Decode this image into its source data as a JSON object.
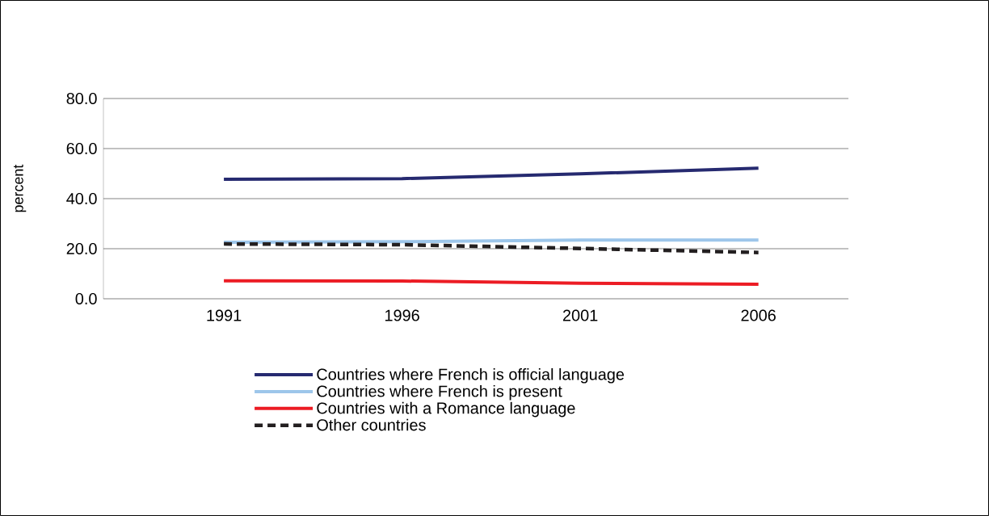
{
  "chart_data": {
    "type": "line",
    "ylabel": "percent",
    "categories": [
      "1991",
      "1996",
      "2001",
      "2006"
    ],
    "series": [
      {
        "name": "Countries where French is official language",
        "color": "#262a70",
        "values": [
          47.7,
          48.0,
          49.9,
          52.2
        ]
      },
      {
        "name": "Countries where French is present",
        "color": "#9dc6ea",
        "values": [
          22.6,
          22.8,
          23.5,
          23.5
        ]
      },
      {
        "name": "Countries with a Romance language",
        "color": "#ec1c24",
        "values": [
          7.2,
          7.1,
          6.2,
          5.8
        ]
      },
      {
        "name": "Other countries",
        "color": "#231f20",
        "values": [
          21.9,
          21.6,
          20.1,
          18.5
        ],
        "line_style": "dashed"
      }
    ],
    "ylim": [
      0,
      80
    ],
    "yticks": [
      {
        "value": 0,
        "label": "0.0"
      },
      {
        "value": 20,
        "label": "20.0"
      },
      {
        "value": 40,
        "label": "40.0"
      },
      {
        "value": 60,
        "label": "60.0"
      },
      {
        "value": 80,
        "label": "80.0"
      }
    ],
    "grid": "y",
    "legend": "bottom",
    "marker": "none"
  }
}
